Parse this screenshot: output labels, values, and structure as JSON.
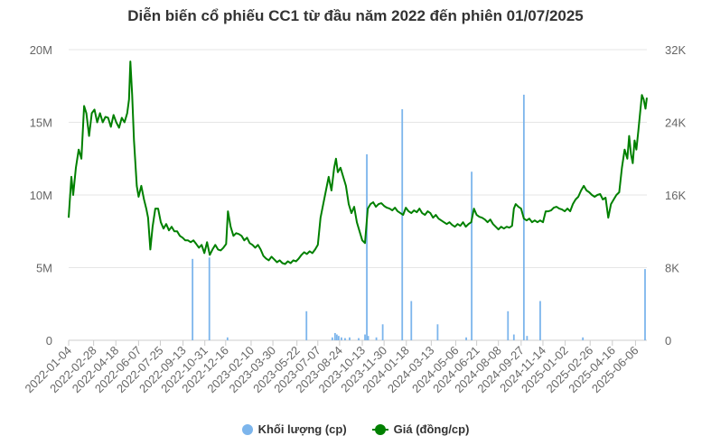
{
  "chart_data": {
    "type": "bar+line",
    "title": "Diễn biến cổ phiếu CC1 từ đầu năm 2022 đến phiên 01/07/2025",
    "x_range": [
      "2022-01-04",
      "2025-07-01"
    ],
    "x_ticks": [
      "2022-01-04",
      "2022-02-28",
      "2022-04-18",
      "2022-06-07",
      "2022-07-25",
      "2022-09-13",
      "2022-10-31",
      "2022-12-16",
      "2023-02-10",
      "2023-03-30",
      "2023-05-22",
      "2023-07-07",
      "2023-08-24",
      "2023-10-13",
      "2023-11-30",
      "2024-01-18",
      "2024-03-13",
      "2024-05-06",
      "2024-06-21",
      "2024-08-08",
      "2024-09-27",
      "2024-11-14",
      "2025-01-02",
      "2025-02-26",
      "2025-04-16",
      "2025-06-06"
    ],
    "y_left": {
      "ticks": [
        "0",
        "5M",
        "10M",
        "15M",
        "20M"
      ],
      "range": [
        0,
        20000000
      ]
    },
    "y_right": {
      "ticks": [
        "0",
        "8K",
        "16K",
        "24K",
        "32K"
      ],
      "range": [
        0,
        32000
      ]
    },
    "legend": [
      {
        "name": "Khối lượng (cp)",
        "color": "#7cb5ec"
      },
      {
        "name": "Giá (đồng/cp)",
        "color": "#008000"
      }
    ],
    "legend_position": "bottom",
    "series": [
      {
        "name": "Khối lượng (cp)",
        "type": "bar",
        "color": "#7cb5ec",
        "points": [
          [
            "2022-10-04",
            5600000
          ],
          [
            "2022-11-10",
            5700000
          ],
          [
            "2022-12-20",
            200000
          ],
          [
            "2023-06-12",
            2000000
          ],
          [
            "2023-08-08",
            200000
          ],
          [
            "2023-08-14",
            500000
          ],
          [
            "2023-08-18",
            400000
          ],
          [
            "2023-08-22",
            300000
          ],
          [
            "2023-08-28",
            200000
          ],
          [
            "2023-09-05",
            150000
          ],
          [
            "2023-09-15",
            200000
          ],
          [
            "2023-10-05",
            150000
          ],
          [
            "2023-10-19",
            400000
          ],
          [
            "2023-10-23",
            12800000
          ],
          [
            "2023-10-26",
            300000
          ],
          [
            "2023-11-13",
            200000
          ],
          [
            "2023-11-27",
            1100000
          ],
          [
            "2024-01-09",
            15900000
          ],
          [
            "2024-01-29",
            2700000
          ],
          [
            "2024-03-27",
            1100000
          ],
          [
            "2024-05-29",
            200000
          ],
          [
            "2024-06-10",
            11600000
          ],
          [
            "2024-08-29",
            2000000
          ],
          [
            "2024-09-11",
            400000
          ],
          [
            "2024-10-03",
            16900000
          ],
          [
            "2024-10-10",
            300000
          ],
          [
            "2024-11-08",
            2700000
          ],
          [
            "2025-02-10",
            200000
          ],
          [
            "2025-06-27",
            4900000
          ]
        ]
      },
      {
        "name": "Giá (đồng/cp)",
        "type": "line",
        "color": "#008000",
        "points": [
          [
            "2022-01-04",
            13500
          ],
          [
            "2022-01-10",
            18000
          ],
          [
            "2022-01-14",
            16000
          ],
          [
            "2022-01-20",
            19000
          ],
          [
            "2022-01-26",
            21000
          ],
          [
            "2022-02-01",
            20000
          ],
          [
            "2022-02-07",
            25800
          ],
          [
            "2022-02-12",
            25000
          ],
          [
            "2022-02-18",
            22500
          ],
          [
            "2022-02-24",
            25000
          ],
          [
            "2022-03-02",
            25400
          ],
          [
            "2022-03-08",
            24000
          ],
          [
            "2022-03-14",
            25000
          ],
          [
            "2022-03-20",
            24000
          ],
          [
            "2022-03-26",
            24600
          ],
          [
            "2022-04-01",
            24500
          ],
          [
            "2022-04-07",
            23500
          ],
          [
            "2022-04-13",
            24800
          ],
          [
            "2022-04-19",
            24000
          ],
          [
            "2022-04-25",
            23400
          ],
          [
            "2022-05-01",
            24500
          ],
          [
            "2022-05-07",
            24000
          ],
          [
            "2022-05-13",
            25000
          ],
          [
            "2022-05-17",
            26500
          ],
          [
            "2022-05-20",
            30700
          ],
          [
            "2022-05-24",
            27000
          ],
          [
            "2022-05-28",
            22000
          ],
          [
            "2022-06-03",
            17000
          ],
          [
            "2022-06-07",
            15800
          ],
          [
            "2022-06-13",
            17000
          ],
          [
            "2022-06-19",
            15500
          ],
          [
            "2022-06-24",
            14500
          ],
          [
            "2022-06-28",
            13500
          ],
          [
            "2022-07-03",
            10000
          ],
          [
            "2022-07-08",
            12500
          ],
          [
            "2022-07-14",
            14500
          ],
          [
            "2022-07-20",
            14500
          ],
          [
            "2022-07-26",
            13000
          ],
          [
            "2022-08-01",
            12300
          ],
          [
            "2022-08-07",
            12800
          ],
          [
            "2022-08-13",
            12100
          ],
          [
            "2022-08-19",
            12500
          ],
          [
            "2022-08-25",
            12000
          ],
          [
            "2022-08-31",
            12000
          ],
          [
            "2022-09-06",
            11500
          ],
          [
            "2022-09-12",
            11300
          ],
          [
            "2022-09-18",
            11000
          ],
          [
            "2022-09-24",
            11000
          ],
          [
            "2022-09-30",
            10800
          ],
          [
            "2022-10-06",
            11000
          ],
          [
            "2022-10-12",
            10600
          ],
          [
            "2022-10-18",
            10200
          ],
          [
            "2022-10-24",
            10500
          ],
          [
            "2022-10-30",
            9600
          ],
          [
            "2022-11-05",
            10800
          ],
          [
            "2022-11-11",
            9400
          ],
          [
            "2022-11-17",
            10000
          ],
          [
            "2022-11-23",
            10500
          ],
          [
            "2022-11-29",
            10000
          ],
          [
            "2022-12-05",
            9900
          ],
          [
            "2022-12-11",
            10200
          ],
          [
            "2022-12-17",
            10600
          ],
          [
            "2022-12-21",
            14200
          ],
          [
            "2022-12-27",
            12500
          ],
          [
            "2023-01-02",
            11500
          ],
          [
            "2023-01-08",
            11800
          ],
          [
            "2023-01-14",
            11700
          ],
          [
            "2023-01-20",
            11500
          ],
          [
            "2023-01-26",
            11000
          ],
          [
            "2023-02-01",
            11300
          ],
          [
            "2023-02-07",
            10700
          ],
          [
            "2023-02-13",
            10500
          ],
          [
            "2023-02-19",
            10200
          ],
          [
            "2023-02-25",
            10500
          ],
          [
            "2023-03-03",
            10000
          ],
          [
            "2023-03-09",
            9300
          ],
          [
            "2023-03-15",
            9000
          ],
          [
            "2023-03-21",
            8800
          ],
          [
            "2023-03-27",
            9200
          ],
          [
            "2023-04-02",
            8900
          ],
          [
            "2023-04-08",
            8600
          ],
          [
            "2023-04-14",
            8800
          ],
          [
            "2023-04-20",
            8500
          ],
          [
            "2023-04-26",
            8400
          ],
          [
            "2023-05-02",
            8700
          ],
          [
            "2023-05-08",
            8500
          ],
          [
            "2023-05-14",
            8800
          ],
          [
            "2023-05-20",
            8700
          ],
          [
            "2023-05-26",
            9000
          ],
          [
            "2023-06-01",
            9400
          ],
          [
            "2023-06-07",
            9700
          ],
          [
            "2023-06-13",
            9500
          ],
          [
            "2023-06-19",
            9800
          ],
          [
            "2023-06-25",
            9600
          ],
          [
            "2023-07-01",
            10000
          ],
          [
            "2023-07-07",
            10500
          ],
          [
            "2023-07-13",
            13500
          ],
          [
            "2023-07-19",
            15000
          ],
          [
            "2023-07-25",
            16500
          ],
          [
            "2023-07-31",
            18000
          ],
          [
            "2023-08-06",
            16500
          ],
          [
            "2023-08-12",
            19000
          ],
          [
            "2023-08-16",
            20000
          ],
          [
            "2023-08-20",
            18500
          ],
          [
            "2023-08-26",
            19000
          ],
          [
            "2023-09-01",
            18000
          ],
          [
            "2023-09-07",
            17000
          ],
          [
            "2023-09-13",
            15000
          ],
          [
            "2023-09-19",
            14000
          ],
          [
            "2023-09-25",
            14700
          ],
          [
            "2023-10-01",
            13000
          ],
          [
            "2023-10-07",
            12000
          ],
          [
            "2023-10-13",
            11000
          ],
          [
            "2023-10-19",
            10700
          ],
          [
            "2023-10-25",
            14500
          ],
          [
            "2023-10-31",
            15000
          ],
          [
            "2023-11-06",
            15200
          ],
          [
            "2023-11-12",
            14700
          ],
          [
            "2023-11-18",
            15000
          ],
          [
            "2023-11-24",
            15100
          ],
          [
            "2023-11-30",
            14800
          ],
          [
            "2023-12-06",
            14600
          ],
          [
            "2023-12-12",
            14500
          ],
          [
            "2023-12-18",
            14300
          ],
          [
            "2023-12-24",
            14600
          ],
          [
            "2023-12-30",
            14200
          ],
          [
            "2024-01-05",
            14000
          ],
          [
            "2024-01-11",
            13800
          ],
          [
            "2024-01-17",
            14600
          ],
          [
            "2024-01-23",
            14200
          ],
          [
            "2024-01-29",
            14000
          ],
          [
            "2024-02-04",
            14300
          ],
          [
            "2024-02-10",
            14100
          ],
          [
            "2024-02-16",
            14500
          ],
          [
            "2024-02-22",
            14000
          ],
          [
            "2024-02-28",
            13800
          ],
          [
            "2024-03-05",
            14200
          ],
          [
            "2024-03-11",
            14000
          ],
          [
            "2024-03-17",
            13500
          ],
          [
            "2024-03-23",
            13800
          ],
          [
            "2024-03-29",
            13400
          ],
          [
            "2024-04-04",
            13200
          ],
          [
            "2024-04-10",
            13000
          ],
          [
            "2024-04-16",
            12800
          ],
          [
            "2024-04-22",
            13000
          ],
          [
            "2024-04-28",
            12700
          ],
          [
            "2024-05-04",
            12500
          ],
          [
            "2024-05-10",
            12800
          ],
          [
            "2024-05-16",
            12600
          ],
          [
            "2024-05-22",
            13000
          ],
          [
            "2024-05-28",
            12500
          ],
          [
            "2024-06-03",
            12800
          ],
          [
            "2024-06-09",
            13000
          ],
          [
            "2024-06-15",
            14500
          ],
          [
            "2024-06-21",
            13800
          ],
          [
            "2024-06-27",
            13600
          ],
          [
            "2024-07-03",
            13500
          ],
          [
            "2024-07-09",
            13300
          ],
          [
            "2024-07-15",
            13000
          ],
          [
            "2024-07-21",
            13300
          ],
          [
            "2024-07-27",
            12800
          ],
          [
            "2024-08-02",
            12500
          ],
          [
            "2024-08-08",
            12200
          ],
          [
            "2024-08-14",
            12500
          ],
          [
            "2024-08-20",
            12300
          ],
          [
            "2024-08-26",
            12500
          ],
          [
            "2024-09-01",
            12400
          ],
          [
            "2024-09-07",
            12600
          ],
          [
            "2024-09-11",
            14500
          ],
          [
            "2024-09-15",
            15000
          ],
          [
            "2024-09-21",
            14700
          ],
          [
            "2024-09-27",
            14500
          ],
          [
            "2024-10-03",
            13400
          ],
          [
            "2024-10-09",
            13200
          ],
          [
            "2024-10-15",
            13400
          ],
          [
            "2024-10-21",
            13000
          ],
          [
            "2024-10-27",
            13200
          ],
          [
            "2024-11-02",
            13000
          ],
          [
            "2024-11-08",
            13200
          ],
          [
            "2024-11-14",
            13000
          ],
          [
            "2024-11-20",
            14200
          ],
          [
            "2024-11-26",
            14200
          ],
          [
            "2024-12-02",
            14300
          ],
          [
            "2024-12-08",
            14600
          ],
          [
            "2024-12-14",
            14700
          ],
          [
            "2024-12-20",
            14500
          ],
          [
            "2024-12-26",
            14400
          ],
          [
            "2025-01-01",
            14200
          ],
          [
            "2025-01-07",
            14500
          ],
          [
            "2025-01-13",
            14200
          ],
          [
            "2025-01-19",
            15000
          ],
          [
            "2025-01-25",
            15500
          ],
          [
            "2025-01-31",
            15800
          ],
          [
            "2025-02-06",
            16500
          ],
          [
            "2025-02-12",
            17000
          ],
          [
            "2025-02-18",
            16500
          ],
          [
            "2025-02-24",
            16300
          ],
          [
            "2025-03-02",
            16000
          ],
          [
            "2025-03-08",
            15800
          ],
          [
            "2025-03-14",
            16000
          ],
          [
            "2025-03-20",
            16100
          ],
          [
            "2025-03-26",
            15500
          ],
          [
            "2025-04-01",
            15700
          ],
          [
            "2025-04-07",
            13500
          ],
          [
            "2025-04-13",
            15000
          ],
          [
            "2025-04-19",
            15500
          ],
          [
            "2025-04-25",
            16000
          ],
          [
            "2025-05-01",
            16300
          ],
          [
            "2025-05-07",
            19000
          ],
          [
            "2025-05-13",
            21000
          ],
          [
            "2025-05-19",
            20000
          ],
          [
            "2025-05-23",
            22500
          ],
          [
            "2025-05-27",
            20500
          ],
          [
            "2025-05-31",
            19500
          ],
          [
            "2025-06-04",
            22000
          ],
          [
            "2025-06-08",
            21000
          ],
          [
            "2025-06-12",
            23000
          ],
          [
            "2025-06-16",
            25000
          ],
          [
            "2025-06-20",
            27000
          ],
          [
            "2025-06-24",
            26500
          ],
          [
            "2025-06-28",
            25500
          ],
          [
            "2025-07-01",
            26700
          ]
        ]
      }
    ]
  }
}
